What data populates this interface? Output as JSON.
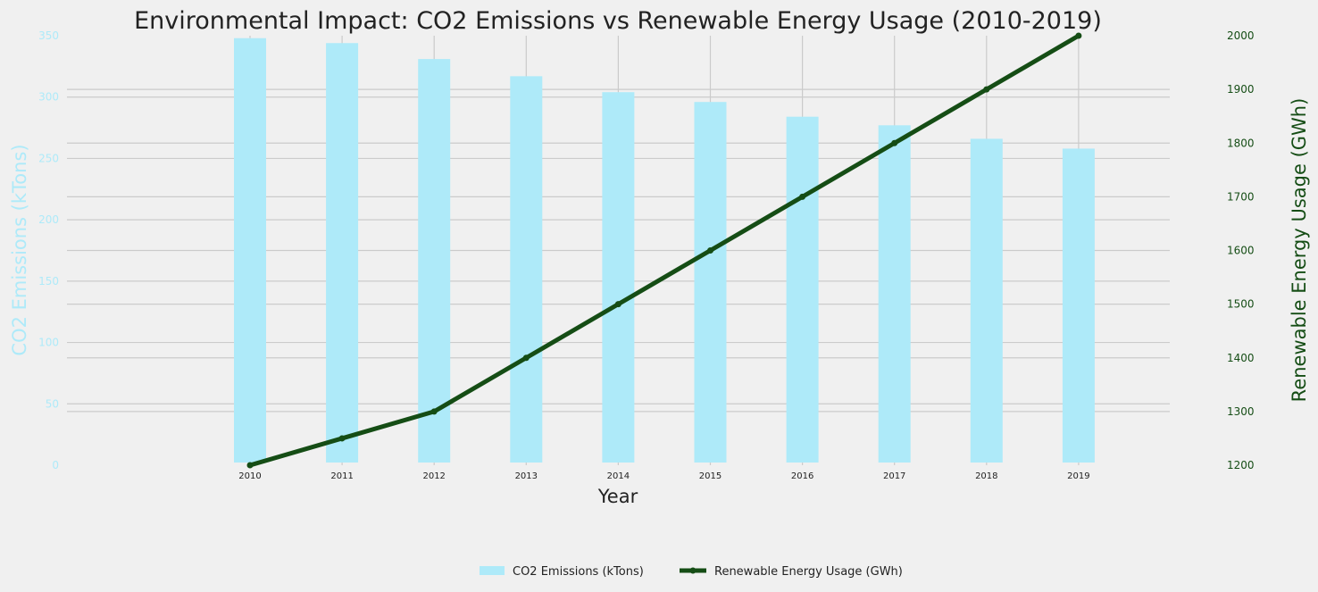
{
  "chart_data": {
    "type": "bar",
    "title": "Environmental Impact: CO2 Emissions vs Renewable Energy Usage (2010-2019)",
    "xlabel": "Year",
    "categories": [
      "2010",
      "2011",
      "2012",
      "2013",
      "2014",
      "2015",
      "2016",
      "2017",
      "2018",
      "2019"
    ],
    "y_left": {
      "label": "CO2 Emissions (kTons)",
      "lim": [
        0,
        350
      ],
      "ticks": [
        "0",
        "50",
        "100",
        "150",
        "200",
        "250",
        "300",
        "350"
      ]
    },
    "y_right": {
      "label": "Renewable Energy Usage (GWh)",
      "lim": [
        1200,
        2000
      ],
      "ticks": [
        "1200",
        "1300",
        "1400",
        "1500",
        "1600",
        "1700",
        "1800",
        "1900",
        "2000"
      ]
    },
    "series": [
      {
        "name": "CO2 Emissions (kTons)",
        "type": "bar",
        "axis": "left",
        "color": "#aeeaf9",
        "values": [
          348,
          344,
          331,
          317,
          304,
          296,
          284,
          277,
          266,
          258
        ]
      },
      {
        "name": "Renewable Energy Usage (GWh)",
        "type": "line",
        "axis": "right",
        "color": "#154d15",
        "values": [
          1200,
          1250,
          1300,
          1400,
          1500,
          1600,
          1700,
          1800,
          1900,
          2000
        ]
      }
    ],
    "grid": true,
    "legend": "bottom-center",
    "colors": {
      "left_axis": "#aeeaf9",
      "right_axis": "#154d15",
      "background": "#f0f0f0",
      "grid": "#cbcbcb"
    }
  }
}
